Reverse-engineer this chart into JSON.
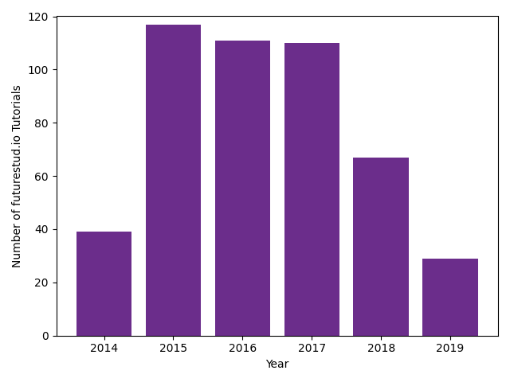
{
  "categories": [
    "2014",
    "2015",
    "2016",
    "2017",
    "2018",
    "2019"
  ],
  "values": [
    39,
    117,
    111,
    110,
    67,
    29
  ],
  "bar_color": "#6b2d8b",
  "xlabel": "Year",
  "ylabel": "Number of futurestud.io Tutorials",
  "ylim": [
    0,
    120
  ],
  "yticks": [
    0,
    20,
    40,
    60,
    80,
    100,
    120
  ],
  "background_color": "#ffffff",
  "figsize": [
    6.4,
    4.8
  ],
  "dpi": 100
}
